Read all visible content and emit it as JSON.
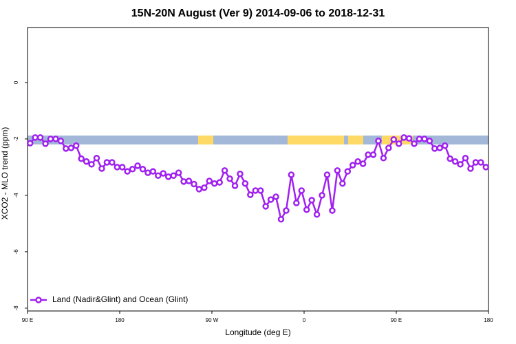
{
  "chart_data": {
    "type": "line",
    "title": "15N-20N August (Ver 9)   2014-09-06 to 2018-12-31",
    "x_label": "Longitude (deg E)",
    "y_label": "XCO2 - MLO trend (ppm)",
    "x": [
      92.5,
      97.5,
      102.5,
      107.5,
      112.5,
      117.5,
      122.5,
      127.5,
      132.5,
      137.5,
      142.5,
      147.5,
      152.5,
      157.5,
      162.5,
      167.5,
      172.5,
      177.5,
      182.5,
      187.5,
      192.5,
      197.5,
      202.5,
      207.5,
      212.5,
      217.5,
      222.5,
      227.5,
      232.5,
      237.5,
      242.5,
      247.5,
      252.5,
      257.5,
      262.5,
      267.5,
      272.5,
      277.5,
      282.5,
      287.5,
      292.5,
      297.5,
      302.5,
      307.5,
      312.5,
      317.5,
      322.5,
      327.5,
      332.5,
      337.5,
      342.5,
      347.5,
      352.5,
      357.5,
      362.5,
      367.5,
      372.5,
      377.5,
      382.5,
      387.5,
      392.5,
      397.5,
      402.5,
      407.5,
      412.5,
      417.5,
      422.5,
      427.5,
      432.5,
      437.5,
      442.5,
      447.5,
      452.5,
      457.5,
      462.5,
      467.5,
      472.5,
      477.5,
      482.5,
      487.5,
      492.5,
      497.5,
      502.5,
      507.5,
      512.5,
      517.5,
      522.5,
      527.5,
      532.5,
      537.5
    ],
    "series": [
      {
        "name": "Land (Nadir&Glint) and Ocean (Glint)",
        "color": "#a020f0",
        "values": [
          -2.15,
          -1.95,
          -1.95,
          -2.17,
          -2.0,
          -2.0,
          -2.07,
          -2.34,
          -2.32,
          -2.24,
          -2.7,
          -2.8,
          -2.9,
          -2.68,
          -3.05,
          -2.83,
          -2.83,
          -3.0,
          -3.0,
          -3.15,
          -3.07,
          -2.95,
          -3.07,
          -3.2,
          -3.15,
          -3.3,
          -3.22,
          -3.34,
          -3.3,
          -3.2,
          -3.51,
          -3.49,
          -3.6,
          -3.78,
          -3.73,
          -3.49,
          -3.58,
          -3.54,
          -3.12,
          -3.41,
          -3.66,
          -3.24,
          -3.58,
          -3.98,
          -3.83,
          -3.83,
          -4.39,
          -4.15,
          -4.05,
          -4.85,
          -4.54,
          -3.27,
          -4.27,
          -3.83,
          -4.51,
          -4.17,
          -4.68,
          -4.0,
          -3.27,
          -4.54,
          -3.12,
          -3.58,
          -3.15,
          -2.93,
          -2.8,
          -2.88,
          -2.56,
          -2.56,
          -2.07,
          -2.68,
          -2.32,
          -2.02,
          -2.17,
          -1.95,
          -1.98,
          -2.17,
          -2.0,
          -2.0,
          -2.07,
          -2.34,
          -2.32,
          -2.24,
          -2.7,
          -2.8,
          -2.9,
          -2.68,
          -3.05,
          -2.83,
          -2.83,
          -3.0
        ]
      }
    ],
    "xlim": [
      90,
      540
    ],
    "xticks": [
      {
        "value": 90,
        "label": "90 E"
      },
      {
        "value": 180,
        "label": "180"
      },
      {
        "value": 270,
        "label": "90 W"
      },
      {
        "value": 360,
        "label": "0"
      },
      {
        "value": 450,
        "label": "90 E"
      },
      {
        "value": 540,
        "label": "180"
      }
    ],
    "ylim": [
      -8.1,
      1.95
    ],
    "yticks": [
      0,
      -2,
      -4,
      -6,
      -8
    ],
    "grid": false,
    "legend": "lower left"
  }
}
